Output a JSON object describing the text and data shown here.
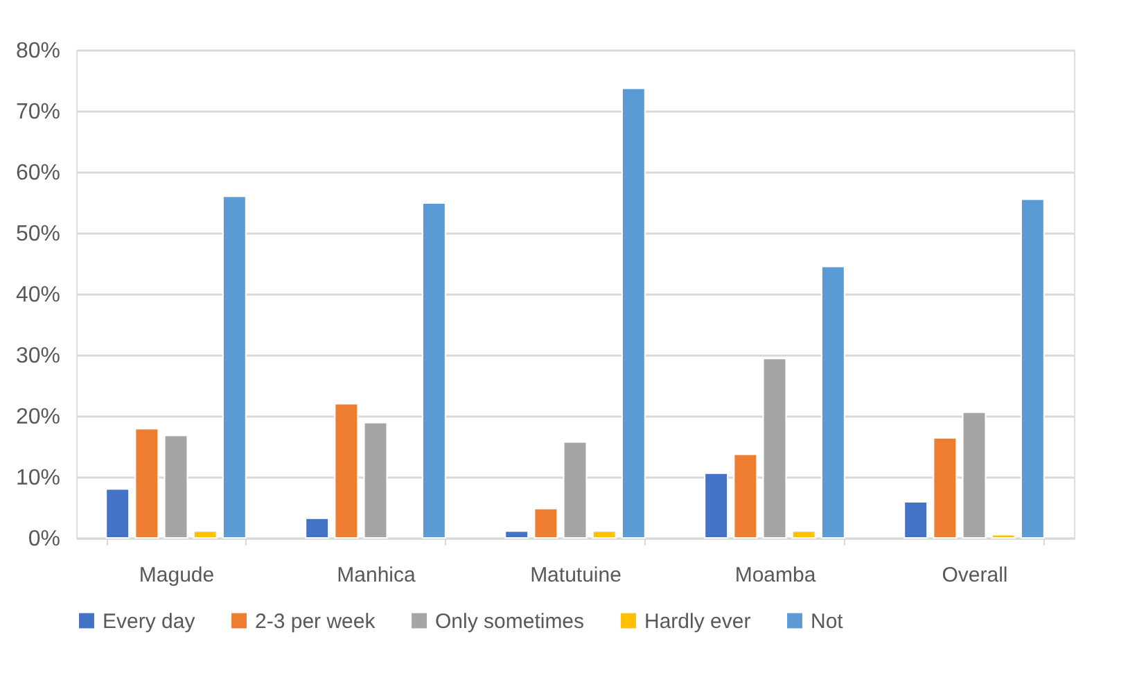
{
  "chart_data": {
    "type": "bar",
    "categories": [
      "Magude",
      "Manhica",
      "Matutuine",
      "Moamba",
      "Overall"
    ],
    "series": [
      {
        "name": "Every day",
        "color": "#4472c4",
        "values": [
          8,
          3.2,
          1.1,
          10.6,
          5.9
        ]
      },
      {
        "name": "2-3 per week",
        "color": "#ed7d31",
        "values": [
          17.9,
          22,
          4.8,
          13.7,
          16.4
        ]
      },
      {
        "name": "Only sometimes",
        "color": "#a5a5a5",
        "values": [
          16.8,
          18.9,
          15.7,
          29.4,
          20.6
        ]
      },
      {
        "name": "Hardly ever",
        "color": "#ffc000",
        "values": [
          1.1,
          null,
          1.1,
          1.1,
          0.5
        ]
      },
      {
        "name": "Not",
        "color": "#5b9bd5",
        "values": [
          56,
          54.9,
          73.7,
          44.5,
          55.5
        ]
      }
    ],
    "ylim": [
      0,
      80
    ],
    "yticks": [
      {
        "value": 0,
        "label": "0%"
      },
      {
        "value": 10,
        "label": "10%"
      },
      {
        "value": 20,
        "label": "20%"
      },
      {
        "value": 30,
        "label": "30%"
      },
      {
        "value": 40,
        "label": "40%"
      },
      {
        "value": 50,
        "label": "50%"
      },
      {
        "value": 60,
        "label": "60%"
      },
      {
        "value": 70,
        "label": "70%"
      },
      {
        "value": 80,
        "label": "80%"
      }
    ],
    "grid": "y",
    "legend": "bottom"
  }
}
